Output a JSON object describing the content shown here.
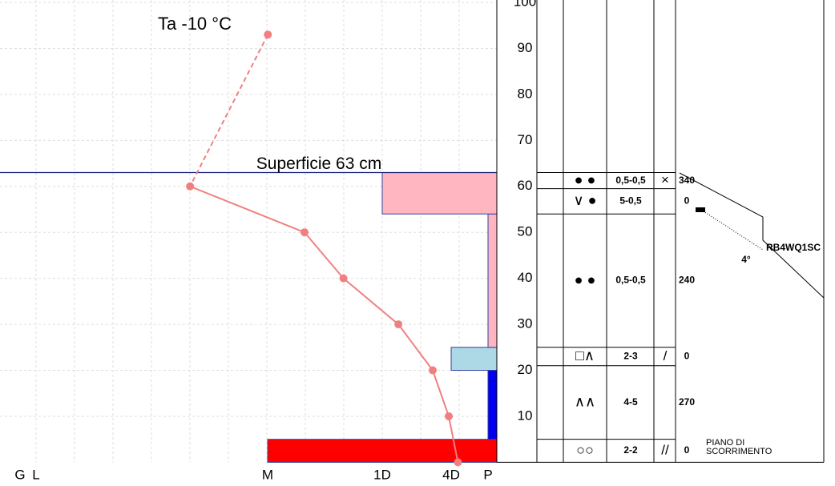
{
  "chart_data": {
    "type": "snow-profile",
    "title": "Ta  -10 °C",
    "surface_label": "Superficie  63 cm",
    "snow_height": 63,
    "ylim": [
      0,
      100
    ],
    "yticks": [
      10,
      20,
      30,
      40,
      50,
      60,
      70,
      80,
      90,
      100
    ],
    "xlim": [
      -21.7,
      0
    ],
    "hardness_ticks": [
      {
        "value": 1,
        "label": "G"
      },
      {
        "value": 2,
        "label": "L"
      },
      {
        "value": 3,
        "label": "M"
      },
      {
        "value": 4,
        "label": "1D"
      },
      {
        "value": 5,
        "label": "4D"
      },
      {
        "value": 6,
        "label": "P"
      }
    ],
    "temperature": {
      "color": "#f08080",
      "air": {
        "height": 93,
        "value": -10
      },
      "heights": [
        60,
        50,
        40,
        30,
        20,
        10,
        0
      ],
      "values": [
        -13.4,
        -8.4,
        -6.7,
        -4.3,
        -2.8,
        -2.1,
        -1.7
      ]
    },
    "layers": [
      {
        "bottom": 0,
        "top": 5,
        "hardness": 3,
        "color": "#ff0000"
      },
      {
        "bottom": 5,
        "top": 20,
        "hardness": 6,
        "color": "#0000ee"
      },
      {
        "bottom": 20,
        "top": 25,
        "hardness": 5,
        "color": "#add8e6"
      },
      {
        "bottom": 25,
        "top": 54,
        "hardness": 6,
        "color": "#ffb6c1"
      },
      {
        "bottom": 54,
        "top": 63,
        "hardness": 4,
        "color": "#ffb6c1"
      }
    ]
  },
  "stratigraphy": {
    "rows": [
      {
        "top": 63,
        "bottom": 59.5,
        "shape": "● ●",
        "size": "0,5-0,5",
        "wetness": "×",
        "number": "340"
      },
      {
        "top": 59.5,
        "bottom": 54,
        "shape": "∨ ●",
        "size": "5-0,5",
        "wetness": null,
        "number": "0"
      },
      {
        "top": 54,
        "bottom": 25,
        "shape": "● ●",
        "size": "0,5-0,5",
        "wetness": null,
        "number": "240"
      },
      {
        "top": 25,
        "bottom": 21,
        "shape": "□∧",
        "size": "2-3",
        "wetness": "/",
        "number": "0"
      },
      {
        "top": 21,
        "bottom": 5,
        "shape": "∧∧",
        "size": "4-5",
        "wetness": null,
        "number": "270"
      },
      {
        "top": 5,
        "bottom": 0,
        "shape": "○○",
        "size": "2-2",
        "wetness": "//",
        "number": "0"
      }
    ],
    "test_label": "RB4WQ1SC",
    "angle": "4°",
    "plane": [
      "PIANO DI",
      "SCORRIMENTO"
    ]
  }
}
